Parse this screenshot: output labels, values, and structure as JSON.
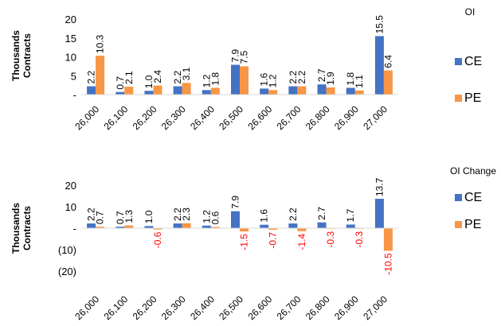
{
  "chart_data": [
    {
      "type": "bar",
      "title": "OI",
      "ylabel": "Thousands Contracts",
      "ylim": [
        0,
        20
      ],
      "y_ticks": [
        20,
        15,
        10,
        5,
        0
      ],
      "y_tick_labels": [
        "20",
        "15",
        "10",
        "5",
        "-"
      ],
      "categories": [
        "26,000",
        "26,100",
        "26,200",
        "26,300",
        "26,400",
        "26,500",
        "26,600",
        "26,700",
        "26,800",
        "26,900",
        "27,000"
      ],
      "series": [
        {
          "name": "CE",
          "color": "#4472C4",
          "values": [
            2.2,
            0.7,
            1.0,
            2.2,
            1.2,
            7.9,
            1.6,
            2.2,
            2.7,
            1.8,
            15.5
          ],
          "labels": [
            "2.2",
            "0.7",
            "1.0",
            "2.2",
            "1.2",
            "7.9",
            "1.6",
            "2.2",
            "2.7",
            "1.8",
            "15.5"
          ]
        },
        {
          "name": "PE",
          "color": "#F79646",
          "values": [
            10.3,
            2.1,
            2.4,
            3.1,
            1.8,
            7.5,
            1.2,
            2.2,
            1.9,
            1.1,
            6.4
          ],
          "labels": [
            "10.3",
            "2.1",
            "2.4",
            "3.1",
            "1.8",
            "7.5",
            "1.2",
            "2.2",
            "1.9",
            "1.1",
            "6.4"
          ]
        }
      ],
      "legend": "right",
      "grid": false
    },
    {
      "type": "bar",
      "title": "OI Change",
      "ylabel": "Thousands Contracts",
      "ylim": [
        -20,
        20
      ],
      "y_ticks": [
        20,
        10,
        0,
        -10,
        -20
      ],
      "y_tick_labels": [
        "20",
        "10",
        "-",
        "(10)",
        "(20)"
      ],
      "categories": [
        "26,000",
        "26,100",
        "26,200",
        "26,300",
        "26,400",
        "26,500",
        "26,600",
        "26,700",
        "26,800",
        "26,900",
        "27,000"
      ],
      "negative_label_color": "#FF0000",
      "series": [
        {
          "name": "CE",
          "color": "#4472C4",
          "values": [
            2.2,
            0.7,
            1.0,
            2.2,
            1.2,
            7.9,
            1.6,
            2.2,
            2.7,
            1.7,
            13.7
          ],
          "labels": [
            "2.2",
            "0.7",
            "1.0",
            "2.2",
            "1.2",
            "7.9",
            "1.6",
            "2.2",
            "2.7",
            "1.7",
            "13.7"
          ]
        },
        {
          "name": "PE",
          "color": "#F79646",
          "values": [
            0.7,
            1.3,
            -0.6,
            2.3,
            0.6,
            -1.5,
            -0.7,
            -1.4,
            -0.3,
            -0.3,
            -10.5
          ],
          "labels": [
            "0.7",
            "1.3",
            "-0.6",
            "2.3",
            "0.6",
            "-1.5",
            "-0.7",
            "-1.4",
            "-0.3",
            "-0.3",
            "-10.5"
          ]
        }
      ],
      "legend": "right",
      "grid": false
    }
  ]
}
